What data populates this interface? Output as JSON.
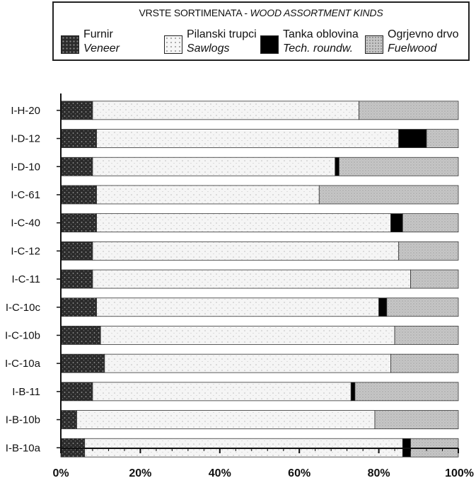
{
  "legend": {
    "title_local": "VRSTE SORTIMENATA - ",
    "title_en": "WOOD ASSORTMENT KINDS",
    "items": [
      {
        "name": "Furnir",
        "en": "Veneer",
        "color": "#2a2a2a"
      },
      {
        "name": "Pilanski trupci",
        "en": "Sawlogs",
        "color": "#f4f4f4"
      },
      {
        "name": "Tanka oblovina",
        "en": "Tech. roundw.",
        "color": "#000000"
      },
      {
        "name": "Ogrjevno drvo",
        "en": "Fuelwood",
        "color": "#c4c4c4"
      }
    ]
  },
  "chart_data": {
    "type": "bar",
    "orientation": "horizontal",
    "stacked": "percent",
    "categories": [
      "I-H-20",
      "I-D-12",
      "I-D-10",
      "I-C-61",
      "I-C-40",
      "I-C-12",
      "I-C-11",
      "I-C-10c",
      "I-C-10b",
      "I-C-10a",
      "I-B-11",
      "I-B-10b",
      "I-B-10a"
    ],
    "series": [
      {
        "name": "Furnir / Veneer",
        "values": [
          8,
          9,
          8,
          9,
          9,
          8,
          8,
          9,
          10,
          11,
          8,
          4,
          6
        ]
      },
      {
        "name": "Pilanski trupci / Sawlogs",
        "values": [
          67,
          76,
          61,
          56,
          74,
          77,
          80,
          71,
          74,
          72,
          65,
          75,
          80
        ]
      },
      {
        "name": "Tanka oblovina / Tech. roundw.",
        "values": [
          0,
          7,
          1,
          0,
          3,
          0,
          0,
          2,
          0,
          0,
          1,
          0,
          2
        ]
      },
      {
        "name": "Ogrjevno drvo / Fuelwood",
        "values": [
          25,
          8,
          30,
          35,
          14,
          15,
          12,
          18,
          16,
          17,
          26,
          21,
          12
        ]
      }
    ],
    "xticks": [
      "0%",
      "20%",
      "40%",
      "60%",
      "80%",
      "100%"
    ],
    "xlim": [
      0,
      100
    ],
    "grid": false,
    "legend_position": "top"
  }
}
